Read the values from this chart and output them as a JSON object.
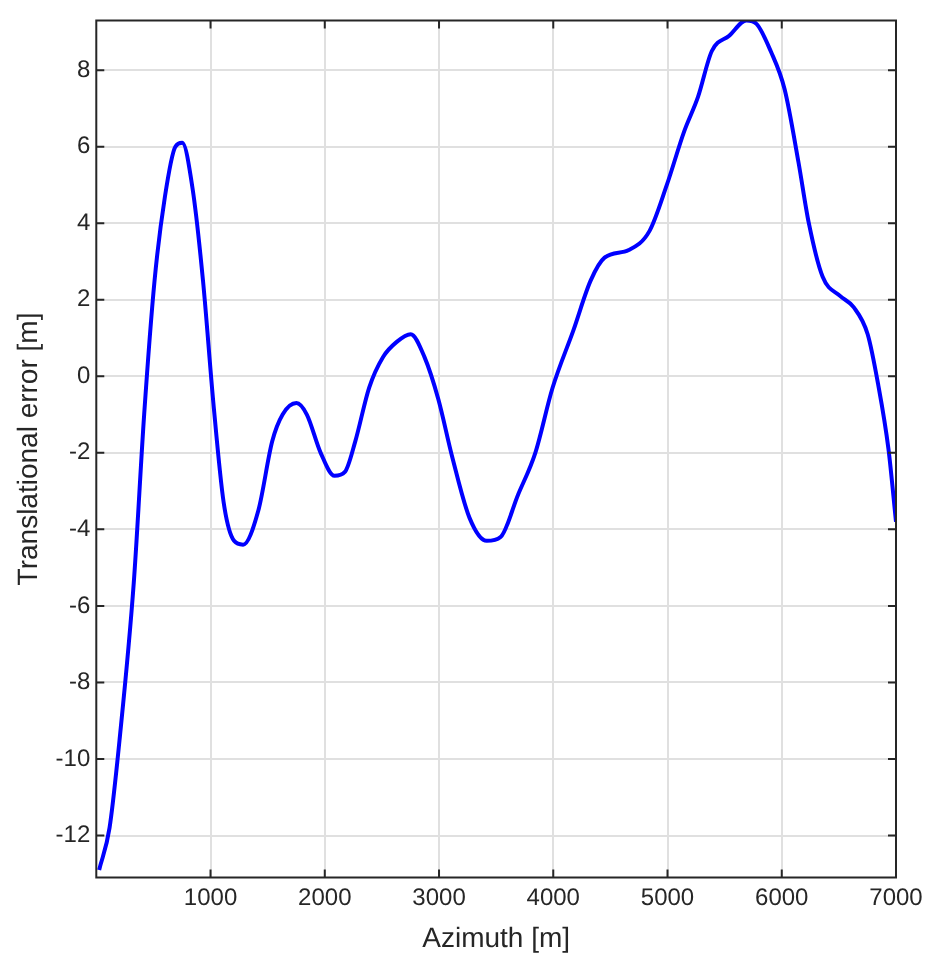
{
  "chart_data": {
    "type": "line",
    "xlabel": "Azimuth [m]",
    "ylabel": "Translational error [m]",
    "xlim": [
      0,
      7000
    ],
    "xticks": [
      1000,
      2000,
      3000,
      4000,
      5000,
      6000,
      7000
    ],
    "ylim": [
      -13.1,
      9.3
    ],
    "yticks": [
      -12,
      -10,
      -8,
      -6,
      -4,
      -2,
      0,
      2,
      4,
      6,
      8
    ],
    "grid": true,
    "series": [
      {
        "color": "#0000ff",
        "x": [
          25,
          116,
          207,
          328,
          419,
          510,
          601,
          692,
          752,
          843,
          934,
          1025,
          1115,
          1206,
          1285,
          1419,
          1540,
          1631,
          1752,
          1843,
          1964,
          2085,
          2176,
          2267,
          2388,
          2509,
          2630,
          2752,
          2873,
          2994,
          3115,
          3267,
          3418,
          3539,
          3691,
          3843,
          3994,
          4176,
          4327,
          4449,
          4661,
          4843,
          4994,
          5146,
          5267,
          5388,
          5540,
          5691,
          5782,
          5903,
          6025,
          6146,
          6237,
          6358,
          6510,
          6631,
          6752,
          6843,
          6934,
          7000
        ],
        "values": [
          -12.9,
          -11.8,
          -9.4,
          -5.4,
          -1.0,
          2.5,
          4.7,
          6.0,
          6.1,
          4.9,
          2.5,
          -0.7,
          -3.3,
          -4.3,
          -4.4,
          -3.5,
          -1.7,
          -1.0,
          -0.7,
          -1.0,
          -2.0,
          -2.6,
          -2.5,
          -1.7,
          -0.3,
          0.5,
          0.9,
          1.1,
          0.5,
          -0.6,
          -2.1,
          -3.7,
          -4.3,
          -4.2,
          -3.1,
          -2.0,
          -0.3,
          1.2,
          2.5,
          3.1,
          3.3,
          3.8,
          5.0,
          6.4,
          7.3,
          8.5,
          8.9,
          9.3,
          9.2,
          8.5,
          7.5,
          5.6,
          4.0,
          2.6,
          2.1,
          1.8,
          1.1,
          -0.2,
          -1.9,
          -3.8
        ]
      }
    ]
  }
}
